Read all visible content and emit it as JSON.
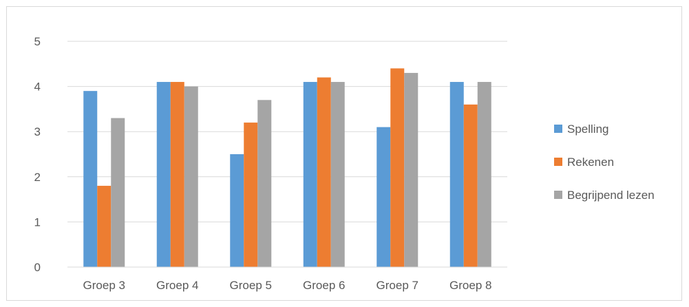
{
  "chart_data": {
    "type": "bar",
    "title": "",
    "xlabel": "",
    "ylabel": "",
    "categories": [
      "Groep 3",
      "Groep 4",
      "Groep 5",
      "Groep 6",
      "Groep 7",
      "Groep 8"
    ],
    "ylim": [
      0,
      5
    ],
    "yticks": [
      "0",
      "1",
      "2",
      "3",
      "4",
      "5"
    ],
    "grid": true,
    "legend_position": "right",
    "series": [
      {
        "name": "Spelling",
        "color": "#5b9bd5",
        "values": [
          3.9,
          4.1,
          2.5,
          4.1,
          3.1,
          4.1
        ]
      },
      {
        "name": "Rekenen",
        "color": "#ed7d31",
        "values": [
          1.8,
          4.1,
          3.2,
          4.2,
          4.4,
          3.6
        ]
      },
      {
        "name": "Begrijpend lezen",
        "color": "#a5a5a5",
        "values": [
          3.3,
          4.0,
          3.7,
          4.1,
          4.3,
          4.1
        ]
      }
    ]
  }
}
